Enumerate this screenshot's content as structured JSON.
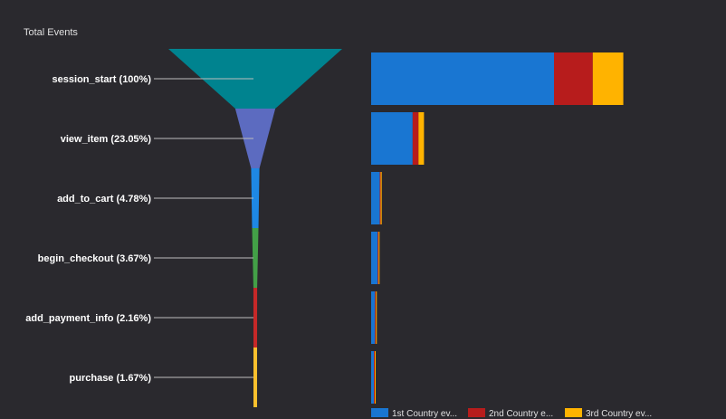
{
  "chart_data": {
    "type": "funnel",
    "title": "Total Events",
    "steps": [
      {
        "label": "session_start (100%)",
        "percent": 100,
        "color": "#00838f"
      },
      {
        "label": "view_item (23.05%)",
        "percent": 23.05,
        "color": "#5c6bc0"
      },
      {
        "label": "add_to_cart (4.78%)",
        "percent": 4.78,
        "color": "#1e88e5"
      },
      {
        "label": "begin_checkout (3.67%)",
        "percent": 3.67,
        "color": "#43a047"
      },
      {
        "label": "add_payment_info (2.16%)",
        "percent": 2.16,
        "color": "#c62828"
      },
      {
        "label": "purchase (1.67%)",
        "percent": 1.67,
        "color": "#fbc02d"
      }
    ],
    "breakdown": {
      "type": "stacked-bar",
      "series": [
        {
          "name": "1st Country ev...",
          "color": "#1976d2",
          "values": [
            100,
            22.7,
            4.7,
            3.6,
            2.1,
            1.5
          ]
        },
        {
          "name": "2nd Country e...",
          "color": "#b71c1c",
          "values": [
            21.2,
            3.2,
            0.3,
            0.25,
            0.2,
            0.15
          ]
        },
        {
          "name": "3rd Country ev...",
          "color": "#ffb300",
          "values": [
            16.7,
            3.0,
            0.6,
            0.5,
            0.4,
            0.3
          ]
        }
      ]
    }
  }
}
